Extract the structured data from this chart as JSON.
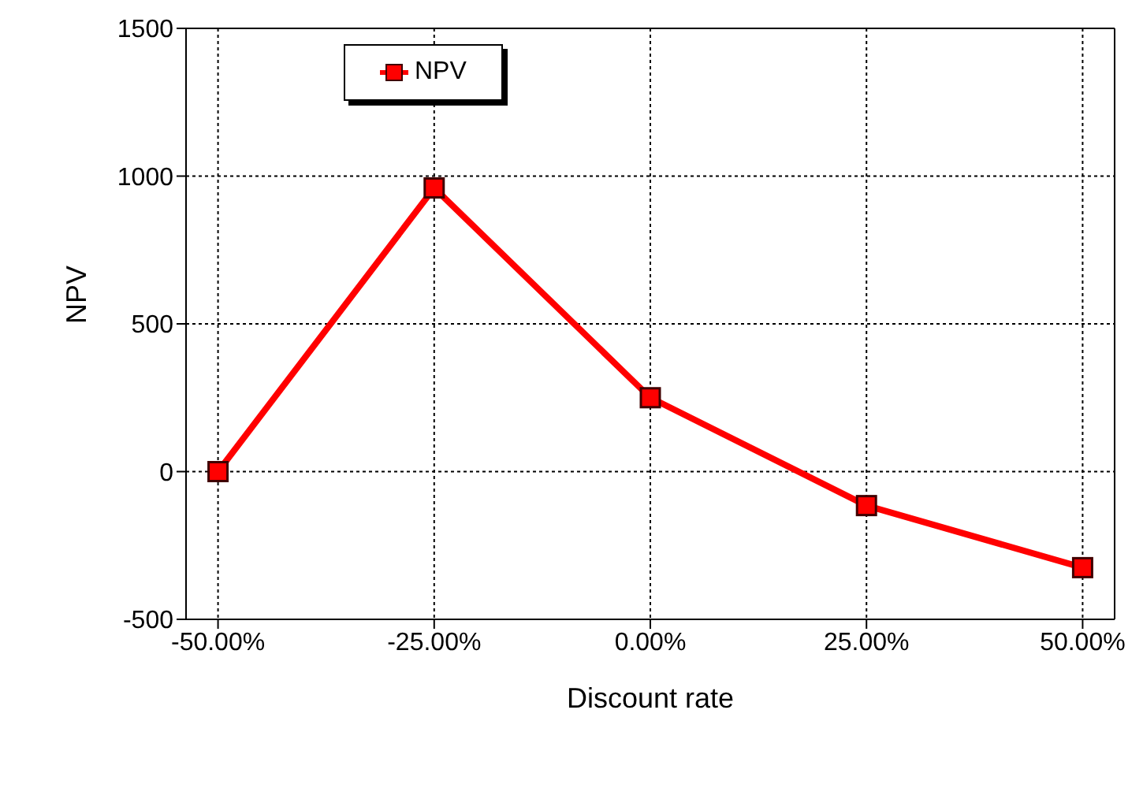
{
  "chart_data": {
    "type": "line",
    "xlabel": "Discount rate",
    "ylabel": "NPV",
    "x": [
      -0.5,
      -0.25,
      0,
      0.25,
      0.5
    ],
    "series": [
      {
        "name": "NPV",
        "color": "#ff0000",
        "values": [
          0,
          960,
          250,
          -115,
          -325
        ]
      }
    ],
    "xlim": [
      -0.537,
      0.537
    ],
    "xticks": [
      {
        "value": -0.5,
        "label": "-50.00%"
      },
      {
        "value": -0.25,
        "label": "-25.00%"
      },
      {
        "value": 0,
        "label": "0.00%"
      },
      {
        "value": 0.25,
        "label": "25.00%"
      },
      {
        "value": 0.5,
        "label": "50.00%"
      }
    ],
    "ylim": [
      -500,
      1500
    ],
    "yticks": [
      -500,
      0,
      500,
      1000,
      1500
    ],
    "grid": true,
    "legend": "top left",
    "marker": "square",
    "line_style": "solid"
  }
}
